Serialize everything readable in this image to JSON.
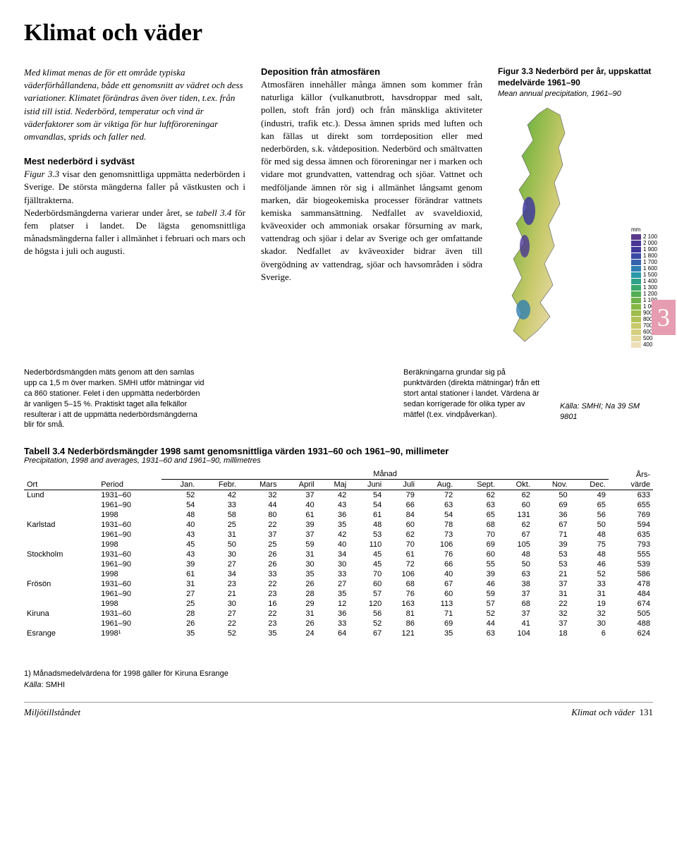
{
  "title": "Klimat och väder",
  "intro": "Med klimat menas de för ett område typiska väderförhållandena, både ett genomsnitt av vädret och dess variationer. Klimatet förändras även över tiden, t.ex. från istid till istid. Nederbörd, temperatur och vind är väderfaktorer som är viktiga för hur luftföroreningar omvandlas, sprids och faller ned.",
  "col1_heading": "Mest nederbörd i sydväst",
  "col1_body": "Figur 3.3 visar den genomsnittliga uppmätta nederbörden i Sverige. De största mängderna faller på västkusten och i fjälltrakterna. Nederbördsmängderna varierar under året, se tabell 3.4 för fem platser i landet. De lägsta genomsnittliga månadsmängderna faller i allmänhet i februari och mars och de högsta i juli och augusti.",
  "col2_heading": "Deposition från atmosfären",
  "col2_body": "Atmosfären innehåller många ämnen som kommer från naturliga källor (vulkanutbrott, havsdroppar med salt, pollen, stoft från jord) och från mänskliga aktiviteter (industri, trafik etc.). Dessa ämnen sprids med luften och kan fällas ut direkt som torrdeposition eller med nederbörden, s.k. våtdeposition. Nederbörd och smältvatten för med sig dessa ämnen och föroreningar ner i marken och vidare mot grundvatten, vattendrag och sjöar. Vattnet och medföljande ämnen rör sig i allmänhet långsamt genom marken, där biogeokemiska processer förändrar vattnets kemiska sammansättning. Nedfallet av svaveldioxid, kväveoxider och ammoniak orsakar försurning av mark, vattendrag och sjöar i delar av Sverige och ger omfattande skador. Nedfallet av kväveoxider bidrar även till övergödning av vattendrag, sjöar och havsområden i södra Sverige.",
  "fig_title": "Figur 3.3 Nederbörd per år, uppskattat medelvärde 1961–90",
  "fig_title_en": "Mean annual precipitation, 1961–90",
  "legend_unit": "mm",
  "legend": [
    {
      "v": "2 100",
      "c": "#5b3a8e"
    },
    {
      "v": "2 000",
      "c": "#4a3694"
    },
    {
      "v": "1 900",
      "c": "#3f3a9a"
    },
    {
      "v": "1 800",
      "c": "#3a4aa4"
    },
    {
      "v": "1 700",
      "c": "#3563ad"
    },
    {
      "v": "1 600",
      "c": "#2f7fb0"
    },
    {
      "v": "1 500",
      "c": "#2b98a8"
    },
    {
      "v": "1 400",
      "c": "#2ea189"
    },
    {
      "v": "1 300",
      "c": "#3aa76b"
    },
    {
      "v": "1 200",
      "c": "#53ad54"
    },
    {
      "v": "1 100",
      "c": "#6eb34a"
    },
    {
      "v": "1 000",
      "c": "#86b847"
    },
    {
      "v": "900",
      "c": "#9ebd4b"
    },
    {
      "v": "800",
      "c": "#b4c357"
    },
    {
      "v": "700",
      "c": "#c7c96a"
    },
    {
      "v": "600",
      "c": "#d6cf82"
    },
    {
      "v": "500",
      "c": "#e3d79d"
    },
    {
      "v": "400",
      "c": "#eedfb9"
    }
  ],
  "chapter_badge": "3",
  "note1": "Nederbördsmängden mäts genom att den samlas upp ca 1,5 m över marken. SMHI utför mätningar vid ca 860 stationer. Felet i den uppmätta nederbörden är vanligen 5–15 %. Praktiskt taget alla felkällor resulterar i att de uppmätta nederbördsmängderna blir för små.",
  "note2": "Beräkningarna grundar sig på punktvärden (direkta mätningar) från ett stort antal stationer i landet. Värdena är sedan korrigerade för olika typer av mätfel (t.ex. vindpåverkan).",
  "note3_source": "Källa: SMHI; Na 39 SM 9801",
  "table_title": "Tabell 3.4  Nederbördsmängder 1998 samt genomsnittliga värden 1931–60 och 1961–90, millimeter",
  "table_sub": "Precipitation, 1998 and averages, 1931–60 and 1961–90, millimetres",
  "months_header": "Månad",
  "year_header": "Års-värde",
  "col_ort": "Ort",
  "col_period": "Period",
  "months": [
    "Jan.",
    "Febr.",
    "Mars",
    "April",
    "Maj",
    "Juni",
    "Juli",
    "Aug.",
    "Sept.",
    "Okt.",
    "Nov.",
    "Dec."
  ],
  "locations": [
    {
      "name": "Lund",
      "rows": [
        {
          "period": "1931–60",
          "v": [
            52,
            42,
            32,
            37,
            42,
            54,
            79,
            72,
            62,
            62,
            50,
            49
          ],
          "year": 633
        },
        {
          "period": "1961–90",
          "v": [
            54,
            33,
            44,
            40,
            43,
            54,
            66,
            63,
            63,
            60,
            69,
            65
          ],
          "year": 655
        },
        {
          "period": "1998",
          "v": [
            48,
            58,
            80,
            61,
            36,
            61,
            84,
            54,
            65,
            131,
            36,
            56
          ],
          "year": 769
        }
      ]
    },
    {
      "name": "Karlstad",
      "rows": [
        {
          "period": "1931–60",
          "v": [
            40,
            25,
            22,
            39,
            35,
            48,
            60,
            78,
            68,
            62,
            67,
            50
          ],
          "year": 594
        },
        {
          "period": "1961–90",
          "v": [
            43,
            31,
            37,
            37,
            42,
            53,
            62,
            73,
            70,
            67,
            71,
            48
          ],
          "year": 635
        },
        {
          "period": "1998",
          "v": [
            45,
            50,
            25,
            59,
            40,
            110,
            70,
            106,
            69,
            105,
            39,
            75
          ],
          "year": 793
        }
      ]
    },
    {
      "name": "Stockholm",
      "rows": [
        {
          "period": "1931–60",
          "v": [
            43,
            30,
            26,
            31,
            34,
            45,
            61,
            76,
            60,
            48,
            53,
            48
          ],
          "year": 555
        },
        {
          "period": "1961–90",
          "v": [
            39,
            27,
            26,
            30,
            30,
            45,
            72,
            66,
            55,
            50,
            53,
            46
          ],
          "year": 539
        },
        {
          "period": "1998",
          "v": [
            61,
            34,
            33,
            35,
            33,
            70,
            106,
            40,
            39,
            63,
            21,
            52
          ],
          "year": 586
        }
      ]
    },
    {
      "name": "Frösön",
      "rows": [
        {
          "period": "1931–60",
          "v": [
            31,
            23,
            22,
            26,
            27,
            60,
            68,
            67,
            46,
            38,
            37,
            33
          ],
          "year": 478
        },
        {
          "period": "1961–90",
          "v": [
            27,
            21,
            23,
            28,
            35,
            57,
            76,
            60,
            59,
            37,
            31,
            31
          ],
          "year": 484
        },
        {
          "period": "1998",
          "v": [
            25,
            30,
            16,
            29,
            12,
            120,
            163,
            113,
            57,
            68,
            22,
            19
          ],
          "year": 674
        }
      ]
    },
    {
      "name": "Kiruna",
      "alt_name": "Esrange",
      "rows": [
        {
          "period": "1931–60",
          "v": [
            28,
            27,
            22,
            31,
            36,
            56,
            81,
            71,
            52,
            37,
            32,
            32
          ],
          "year": 505
        },
        {
          "period": "1961–90",
          "v": [
            26,
            22,
            23,
            26,
            33,
            52,
            86,
            69,
            44,
            41,
            37,
            30
          ],
          "year": 488
        },
        {
          "period": "1998¹",
          "v": [
            35,
            52,
            35,
            24,
            64,
            67,
            121,
            35,
            63,
            104,
            18,
            6
          ],
          "year": 624
        }
      ]
    }
  ],
  "footnote": "1) Månadsmedelvärdena för 1998 gäller för Kiruna Esrange",
  "table_source_label": "Källa",
  "table_source": "SMHI",
  "footer_left": "Miljötillståndet",
  "footer_right": "Klimat och väder",
  "page_no": "131"
}
